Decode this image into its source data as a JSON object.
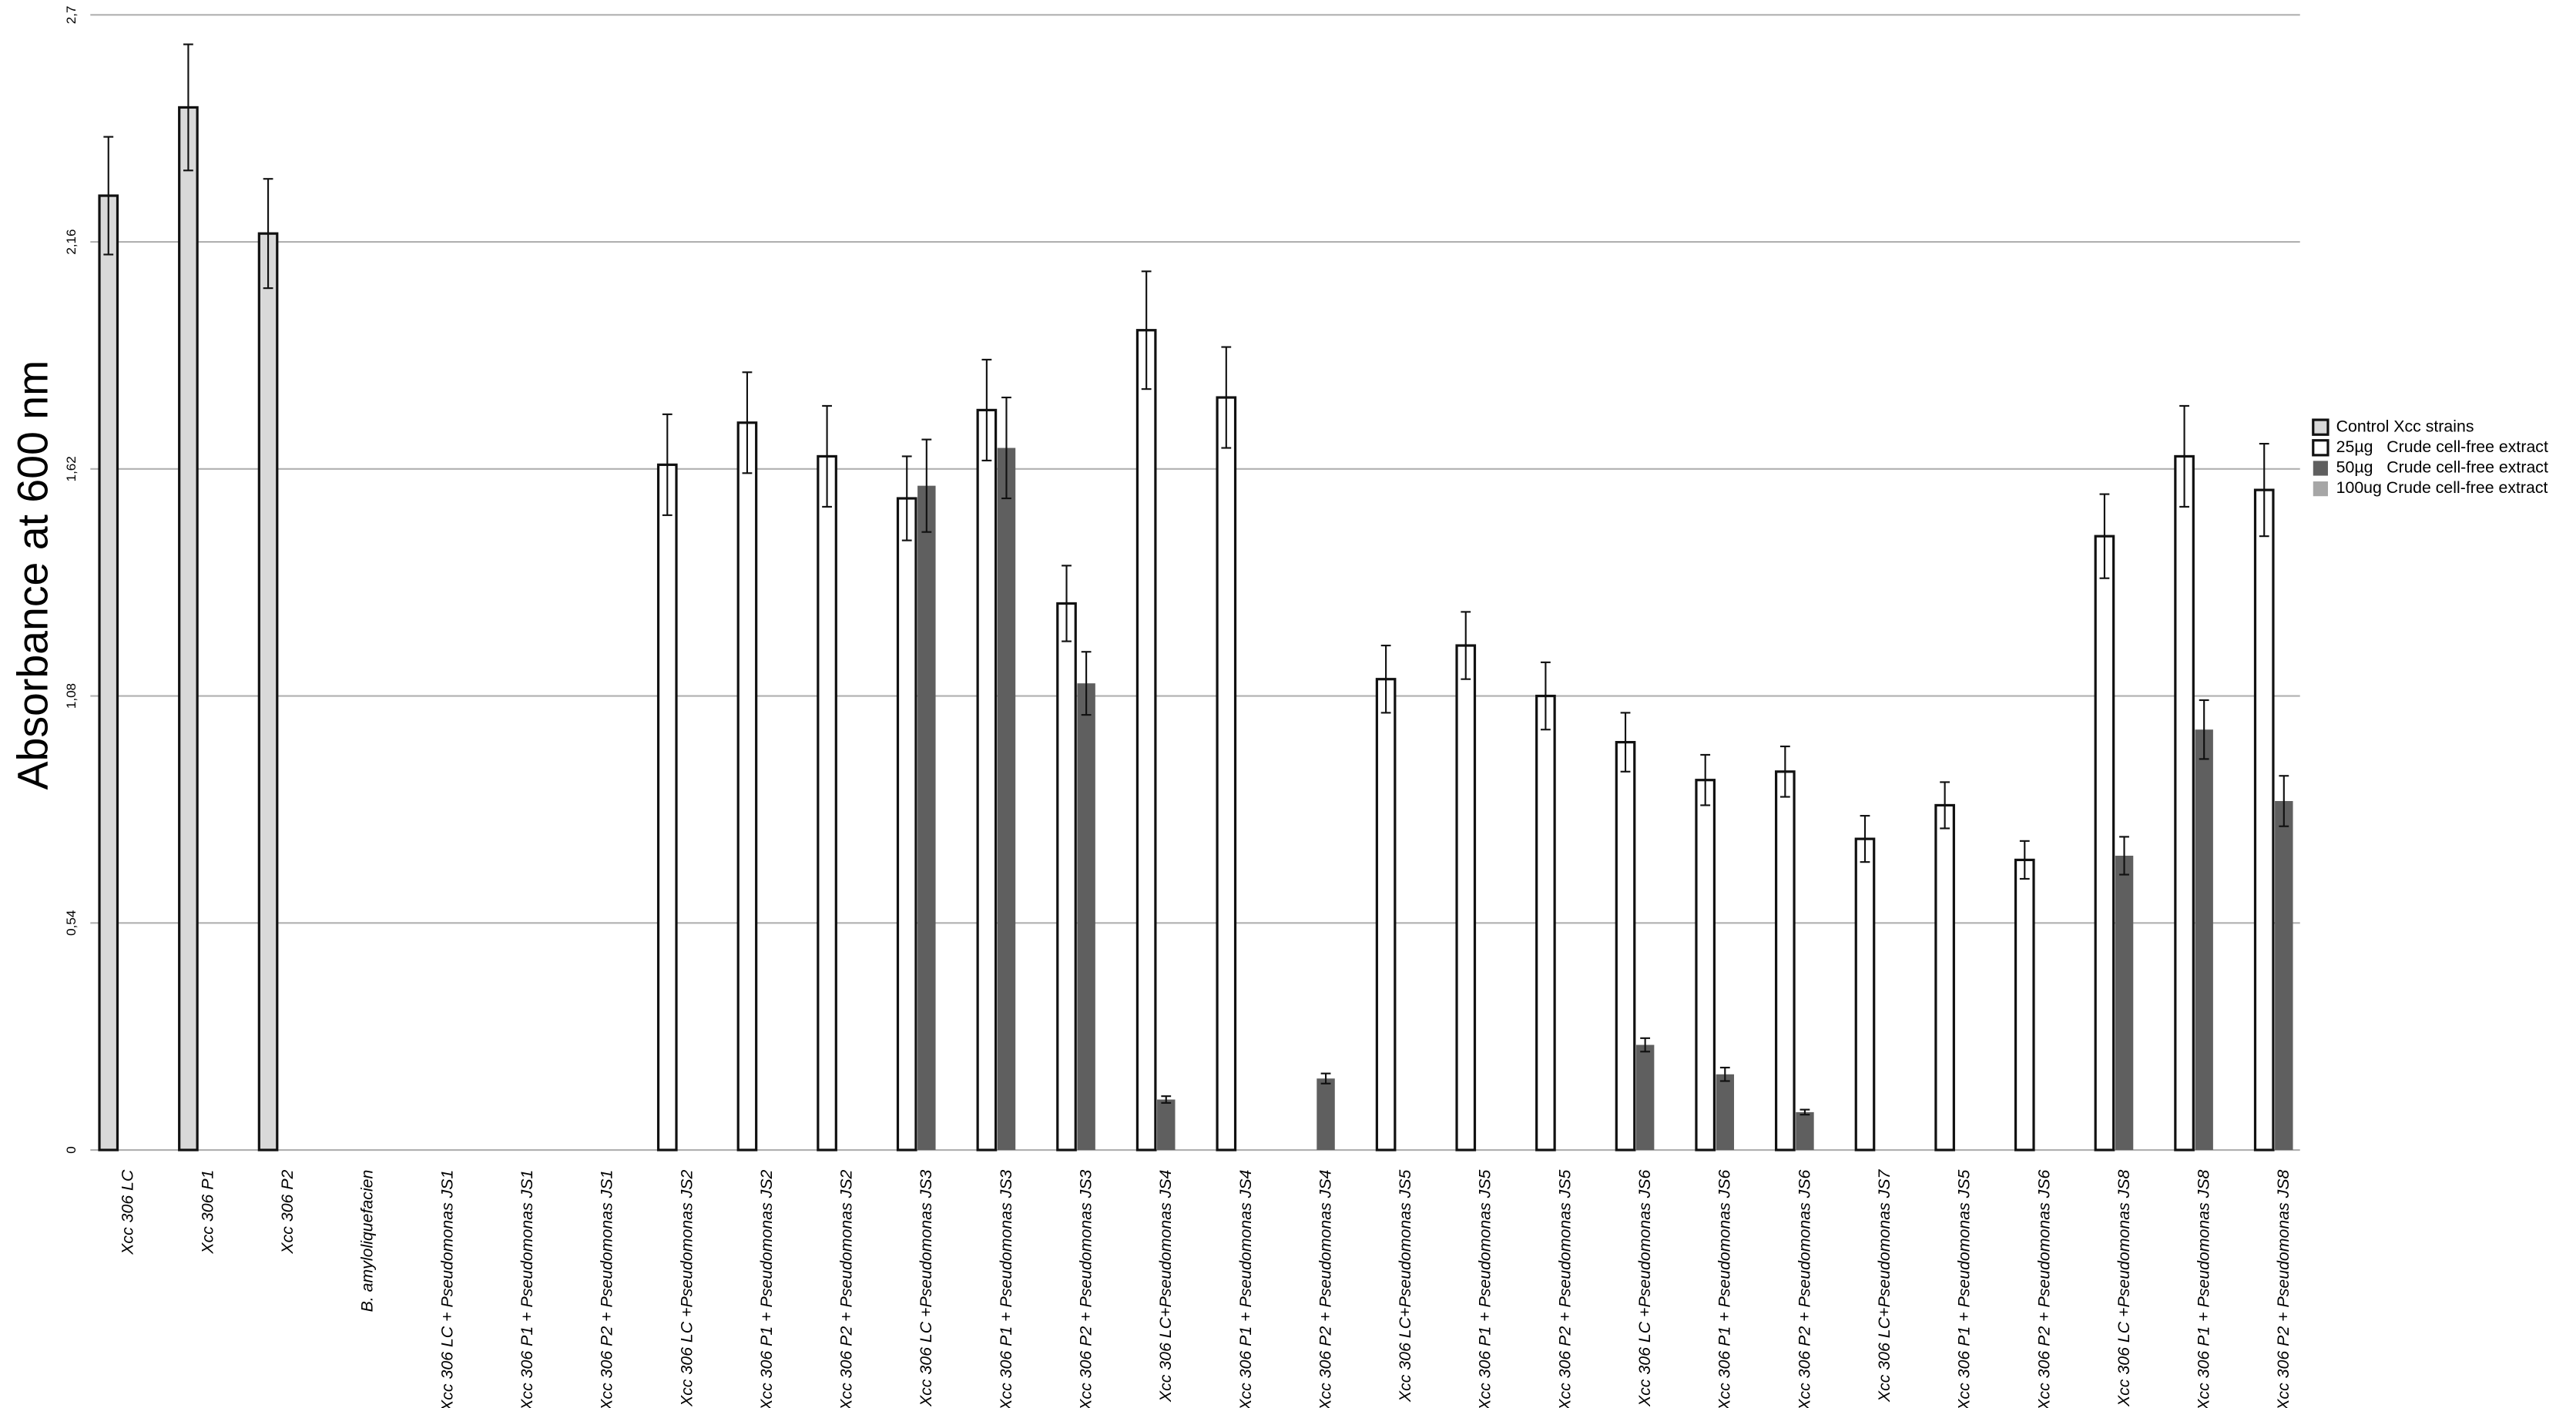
{
  "chart_data": {
    "type": "bar",
    "y_label": "Absorbance at 600 nm",
    "categories": [
      "Xcc 306 LC",
      "Xcc 306 P1",
      "Xcc 306 P2",
      "B. amyloliquefacien",
      "Xcc 306 LC + Pseudomonas JS1",
      "Xcc 306 P1 + Pseudomonas JS1",
      "Xcc 306 P2 + Pseudomonas JS1",
      "Xcc 306 LC +Pseudomonas JS2",
      "Xcc 306 P1 + Pseudomonas JS2",
      "Xcc 306 P2 + Pseudomonas JS2",
      "Xcc 306 LC +Pseudomonas JS3",
      "Xcc 306 P1 + Pseudomonas JS3",
      "Xcc 306 P2 + Pseudomonas JS3",
      "Xcc 306  LC+Pseudomonas JS4",
      "Xcc 306 P1 + Pseudomonas JS4",
      "Xcc 306 P2 + Pseudomonas JS4",
      "Xcc 306  LC+Pseudomonas JS5",
      "Xcc 306 P1 + Pseudomonas JS5",
      "Xcc 306 P2 + Pseudomonas JS5",
      "Xcc 306 LC +Pseudomonas JS6",
      "Xcc 306 P1 + Pseudomonas JS6",
      "Xcc 306 P2 + Pseudomonas JS6",
      "Xcc 306 LC+Pseudomonas JS7",
      "Xcc 306 P1 + Pseudomonas JS5",
      "Xcc 306 P2 + Pseudomonas JS6",
      "Xcc 306 LC +Pseudomonas JS8",
      "Xcc 306 P1 + Pseudomonas JS8",
      "Xcc 306 P2 + Pseudomonas JS8"
    ],
    "series": [
      {
        "name": "Control Xcc strains",
        "color": "#d9d9d9",
        "values": [
          2.27,
          2.48,
          2.18,
          null,
          null,
          null,
          null,
          null,
          null,
          null,
          null,
          null,
          null,
          null,
          null,
          null,
          null,
          null,
          null,
          null,
          null,
          null,
          null,
          null,
          null,
          null,
          null,
          null
        ],
        "errors": [
          0.14,
          0.15,
          0.13,
          null,
          null,
          null,
          null,
          null,
          null,
          null,
          null,
          null,
          null,
          null,
          null,
          null,
          null,
          null,
          null,
          null,
          null,
          null,
          null,
          null,
          null,
          null,
          null,
          null
        ]
      },
      {
        "name": "25µg   Crude cell-free extract",
        "color": "#ffffff",
        "values": [
          null,
          null,
          null,
          null,
          null,
          null,
          null,
          1.63,
          1.73,
          1.65,
          1.55,
          1.76,
          1.3,
          1.95,
          1.79,
          null,
          1.12,
          1.2,
          1.08,
          0.97,
          0.88,
          0.9,
          0.74,
          0.82,
          0.69,
          1.46,
          1.65,
          1.57
        ],
        "errors": [
          null,
          null,
          null,
          null,
          null,
          null,
          null,
          0.12,
          0.12,
          0.12,
          0.1,
          0.12,
          0.09,
          0.14,
          0.12,
          null,
          0.08,
          0.08,
          0.08,
          0.07,
          0.06,
          0.06,
          0.055,
          0.055,
          0.045,
          0.1,
          0.12,
          0.11
        ]
      },
      {
        "name": "50µg   Crude cell-free extract",
        "color": "#5f5f5f",
        "values": [
          null,
          null,
          null,
          null,
          null,
          null,
          null,
          null,
          null,
          null,
          1.58,
          1.67,
          1.11,
          0.12,
          null,
          0.17,
          null,
          null,
          null,
          0.25,
          0.18,
          0.09,
          null,
          null,
          null,
          0.7,
          1.0,
          0.83
        ],
        "errors": [
          null,
          null,
          null,
          null,
          null,
          null,
          null,
          null,
          null,
          null,
          0.11,
          0.12,
          0.075,
          0.008,
          null,
          0.012,
          null,
          null,
          null,
          0.016,
          0.016,
          0.006,
          null,
          null,
          null,
          0.045,
          0.07,
          0.06
        ]
      },
      {
        "name": "100ug Crude cell-free extract",
        "color": "#a6a6a6",
        "values": [
          null,
          null,
          null,
          null,
          null,
          null,
          null,
          null,
          null,
          null,
          null,
          null,
          null,
          null,
          null,
          null,
          null,
          null,
          null,
          null,
          null,
          null,
          null,
          null,
          null,
          null,
          null,
          null
        ],
        "errors": [
          null,
          null,
          null,
          null,
          null,
          null,
          null,
          null,
          null,
          null,
          null,
          null,
          null,
          null,
          null,
          null,
          null,
          null,
          null,
          null,
          null,
          null,
          null,
          null,
          null,
          null,
          null,
          null
        ]
      }
    ],
    "ylim": [
      0,
      2.7
    ],
    "yticks": [
      {
        "value": 0,
        "label": "0"
      },
      {
        "value": 0.54,
        "label": "0,54"
      },
      {
        "value": 1.08,
        "label": "1,08"
      },
      {
        "value": 1.62,
        "label": "1,62"
      },
      {
        "value": 2.16,
        "label": "2,16"
      },
      {
        "value": 2.7,
        "label": "2,7"
      }
    ],
    "grid": true,
    "legend": "right"
  }
}
